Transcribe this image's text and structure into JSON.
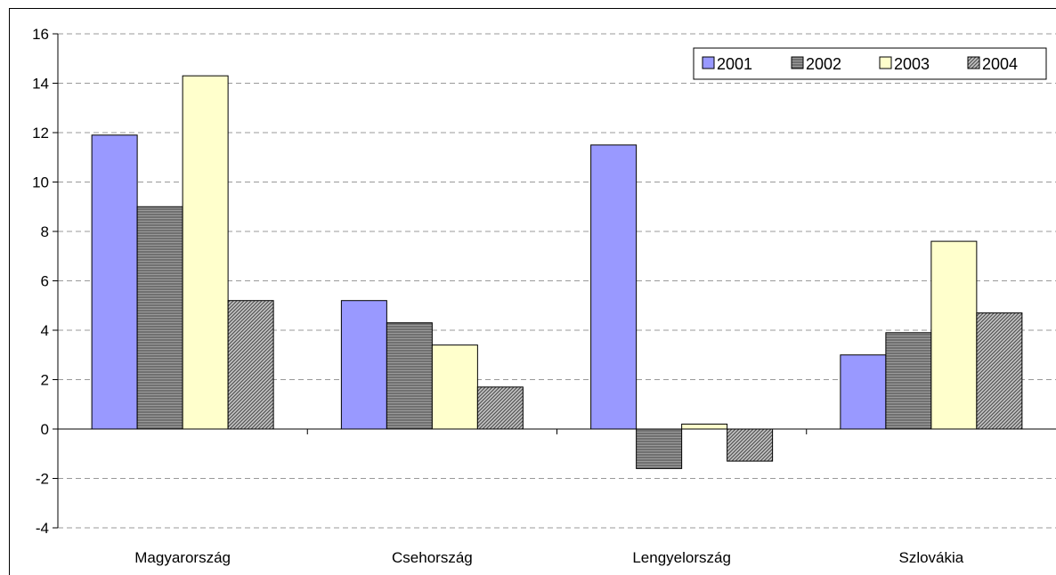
{
  "chart_data": {
    "type": "bar",
    "title": "",
    "xlabel": "",
    "ylabel": "",
    "categories": [
      "Magyarország",
      "Csehország",
      "Lengyelország",
      "Szlovákia"
    ],
    "series": [
      {
        "name": "2001",
        "values": [
          11.9,
          5.2,
          11.5,
          3.0
        ],
        "color": "#9999ff",
        "pattern": "solid"
      },
      {
        "name": "2002",
        "values": [
          9.0,
          4.3,
          -1.6,
          3.9
        ],
        "color": "#808080",
        "pattern": "horizontal-lines"
      },
      {
        "name": "2003",
        "values": [
          14.3,
          3.4,
          0.2,
          7.6
        ],
        "color": "#ffffcc",
        "pattern": "solid"
      },
      {
        "name": "2004",
        "values": [
          5.2,
          1.7,
          -1.3,
          4.7
        ],
        "color": "#808080",
        "pattern": "diagonal-hatch"
      }
    ],
    "ylim": [
      -4,
      16
    ],
    "yticks": [
      "16",
      "14",
      "12",
      "10",
      "8",
      "6",
      "4",
      "2",
      "0",
      "-2",
      "-4"
    ],
    "grid": true,
    "legend_position": "top-right"
  }
}
